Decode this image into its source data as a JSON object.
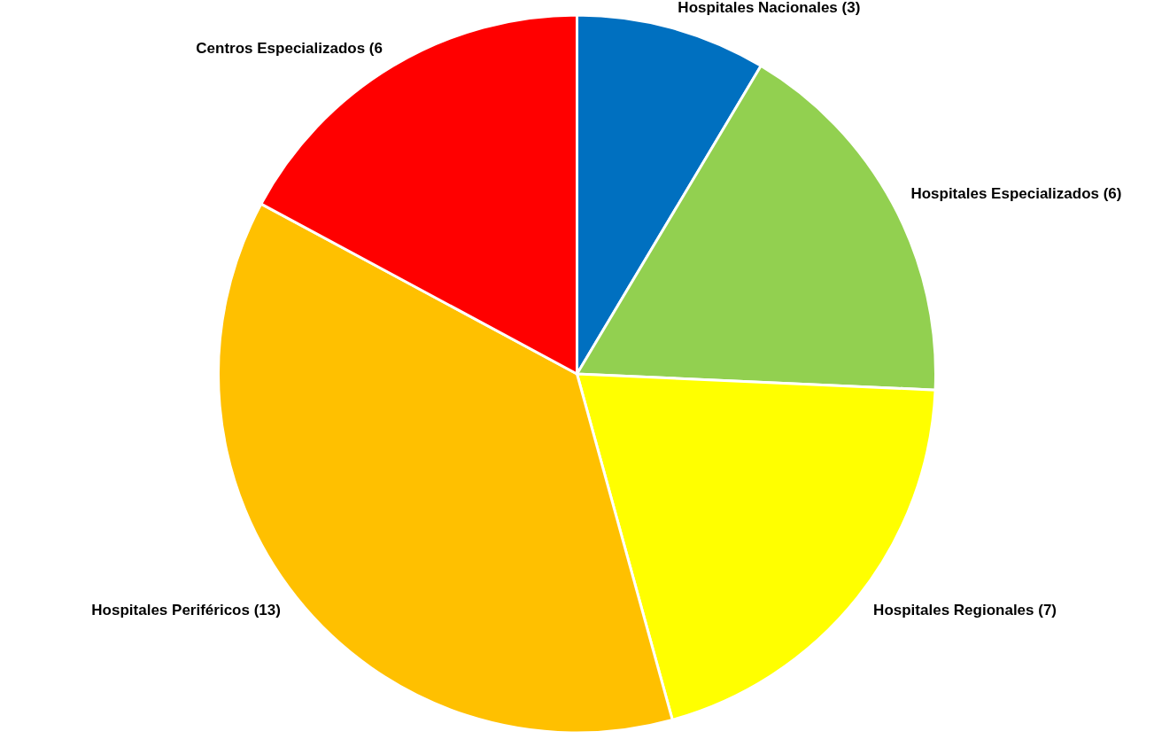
{
  "chart_data": {
    "type": "pie",
    "categories": [
      "Hospitales Nacionales (3)",
      "Hospitales Especializados (6)",
      "Hospitales Regionales (7)",
      "Hospitales Periféricos (13)",
      "Centros Especializados (6"
    ],
    "values": [
      3,
      6,
      7,
      13,
      6
    ],
    "colors": [
      "#0070c0",
      "#92d050",
      "#ffff00",
      "#ffc000",
      "#ff0000"
    ],
    "legend": false
  }
}
